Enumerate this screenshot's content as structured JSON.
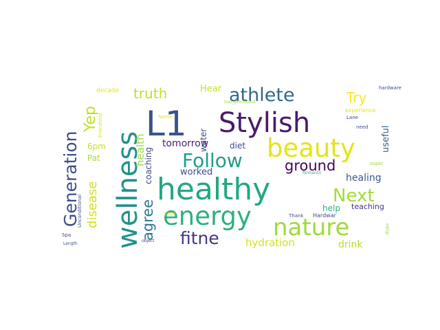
{
  "words": [
    {
      "text": "healthy",
      "color": "#22a785"
    },
    {
      "text": "L1",
      "color": "#3b528b"
    },
    {
      "text": "Stylish",
      "color": "#481a6c"
    },
    {
      "text": "wellness",
      "color": "#21918c"
    },
    {
      "text": "beauty",
      "color": "#e5e419"
    },
    {
      "text": "energy",
      "color": "#2db27d"
    },
    {
      "text": "nature",
      "color": "#a0da39"
    },
    {
      "text": "athlete",
      "color": "#31688e"
    },
    {
      "text": "Generation",
      "color": "#3e4c8a"
    },
    {
      "text": "Follow",
      "color": "#1f9e89"
    },
    {
      "text": "Next",
      "color": "#a5db36"
    },
    {
      "text": "fitne",
      "color": "#453781"
    },
    {
      "text": "agree",
      "color": "#2a788e"
    },
    {
      "text": "Yep",
      "color": "#c2df23"
    },
    {
      "text": "ground",
      "color": "#440154"
    },
    {
      "text": "truth",
      "color": "#c0df25"
    },
    {
      "text": "disease",
      "color": "#d0e11c"
    },
    {
      "text": "Try",
      "color": "#fde725"
    },
    {
      "text": "health",
      "color": "#9bd93c"
    },
    {
      "text": "hydration",
      "color": "#d5e21a"
    },
    {
      "text": "drink",
      "color": "#b5de2b"
    },
    {
      "text": "healing",
      "color": "#38588c"
    },
    {
      "text": "tomorrow",
      "color": "#482173"
    },
    {
      "text": "coaching",
      "color": "#3f4889"
    },
    {
      "text": "worked",
      "color": "#3e4a89"
    },
    {
      "text": "useful",
      "color": "#355f8d"
    },
    {
      "text": "water",
      "color": "#404688"
    },
    {
      "text": "diet",
      "color": "#3f4788"
    },
    {
      "text": "Hear",
      "color": "#c0df25"
    },
    {
      "text": "6pm",
      "color": "#c2df23"
    },
    {
      "text": "Pat",
      "color": "#a8db34"
    },
    {
      "text": "help",
      "color": "#2ab07f"
    },
    {
      "text": "teaching",
      "color": "#46327e"
    },
    {
      "text": "decade",
      "color": "#e2e418"
    },
    {
      "text": "Unconditional",
      "color": "#3b528b"
    },
    {
      "text": "Friendship",
      "color": "#dde318"
    },
    {
      "text": "Name",
      "color": "#e2e418"
    },
    {
      "text": "text_processed",
      "color": "#a8db34"
    },
    {
      "text": "hardware",
      "color": "#3e4a89"
    },
    {
      "text": "experience",
      "color": "#e2e418"
    },
    {
      "text": "Lane",
      "color": "#3f4788"
    },
    {
      "text": "need",
      "color": "#3e4c8a"
    },
    {
      "text": "Romantic",
      "color": "#2db27d"
    },
    {
      "text": "super",
      "color": "#a0da39"
    },
    {
      "text": "Thank",
      "color": "#3e4c8a"
    },
    {
      "text": "Hardwar",
      "color": "#3e4c8a"
    },
    {
      "text": "dtype",
      "color": "#a0da39"
    },
    {
      "text": "Love",
      "color": "#e2e418"
    },
    {
      "text": "object",
      "color": "#3e4a89"
    },
    {
      "text": "Spa",
      "color": "#3e4a89"
    },
    {
      "text": "Length",
      "color": "#3e4a89"
    }
  ]
}
